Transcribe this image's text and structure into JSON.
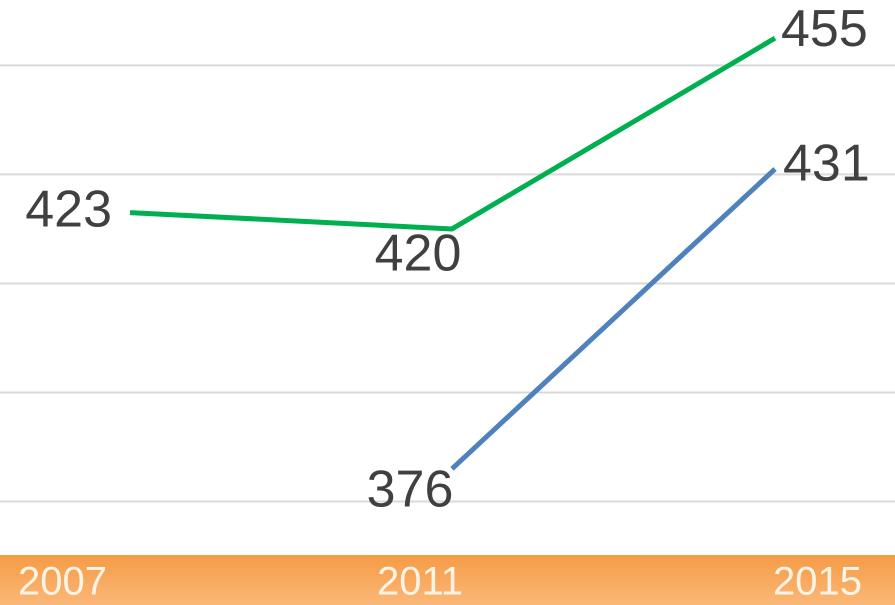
{
  "chart_data": {
    "type": "line",
    "categories": [
      "2007",
      "2011",
      "2015"
    ],
    "series": [
      {
        "color": "#00b050",
        "values": [
          423,
          420,
          455
        ]
      },
      {
        "color": "#4f81bd",
        "values": [
          null,
          376,
          431
        ]
      }
    ],
    "ylim": [
      360,
      462
    ],
    "yticks": [
      370,
      390,
      410,
      430,
      450
    ],
    "grid": true,
    "y_axis_labels": false,
    "x_band_color": "#f7a353"
  }
}
